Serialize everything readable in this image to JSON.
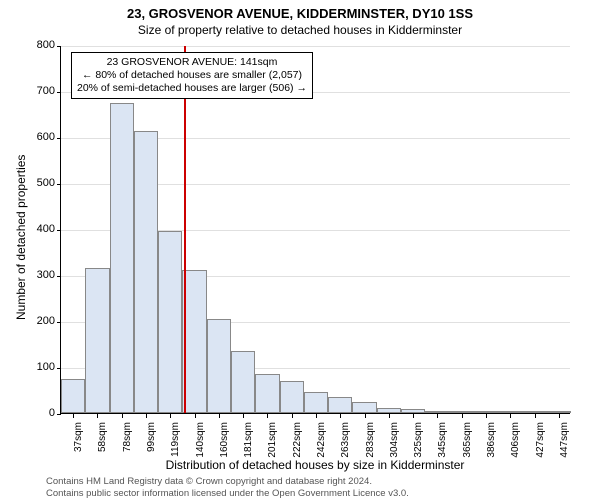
{
  "title_main": "23, GROSVENOR AVENUE, KIDDERMINSTER, DY10 1SS",
  "title_sub": "Size of property relative to detached houses in Kidderminster",
  "chart": {
    "type": "histogram",
    "bar_color": "#dbe5f3",
    "bar_border_color": "#888888",
    "grid_color": "#e0e0e0",
    "background_color": "#ffffff",
    "reference_line_color": "#cc0000",
    "ylim": [
      0,
      800
    ],
    "ytick_step": 100,
    "y_axis_title": "Number of detached properties",
    "x_axis_title": "Distribution of detached houses by size in Kidderminster",
    "x_labels": [
      "37sqm",
      "58sqm",
      "78sqm",
      "99sqm",
      "119sqm",
      "140sqm",
      "160sqm",
      "181sqm",
      "201sqm",
      "222sqm",
      "242sqm",
      "263sqm",
      "283sqm",
      "304sqm",
      "325sqm",
      "345sqm",
      "365sqm",
      "386sqm",
      "406sqm",
      "427sqm",
      "447sqm"
    ],
    "values": [
      75,
      315,
      675,
      612,
      395,
      310,
      205,
      135,
      85,
      70,
      45,
      35,
      25,
      10,
      8,
      5,
      3,
      3,
      2,
      2,
      2
    ],
    "reference_x_index": 5.07,
    "title_fontsize": 13,
    "subtitle_fontsize": 12,
    "label_fontsize": 11
  },
  "annotation": {
    "line1": "23 GROSVENOR AVENUE: 141sqm",
    "line2": "← 80% of detached houses are smaller (2,057)",
    "line3": "20% of semi-detached houses are larger (506) →"
  },
  "footer": {
    "line1": "Contains HM Land Registry data © Crown copyright and database right 2024.",
    "line2": "Contains public sector information licensed under the Open Government Licence v3.0."
  }
}
